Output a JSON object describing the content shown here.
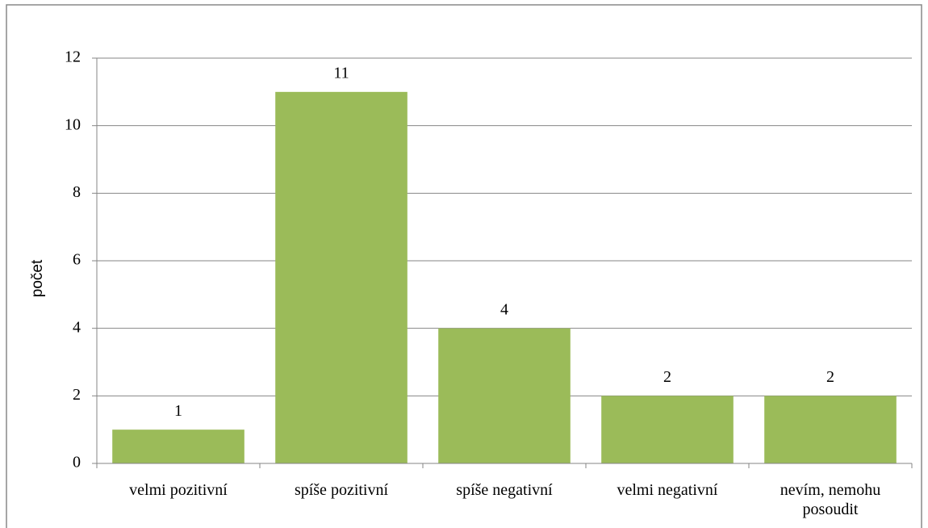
{
  "chart_data": {
    "type": "bar",
    "y_label": "počet",
    "categories": [
      "velmi pozitivní",
      "spíše pozitivní",
      "spíše negativní",
      "velmi negativní",
      "nevím, nemohu posoudit"
    ],
    "values": [
      1,
      11,
      4,
      2,
      2
    ],
    "color": "#9bbb59",
    "ylim": [
      0,
      12
    ],
    "yticks": [
      0,
      2,
      4,
      6,
      8,
      10,
      12
    ],
    "grid": true
  }
}
